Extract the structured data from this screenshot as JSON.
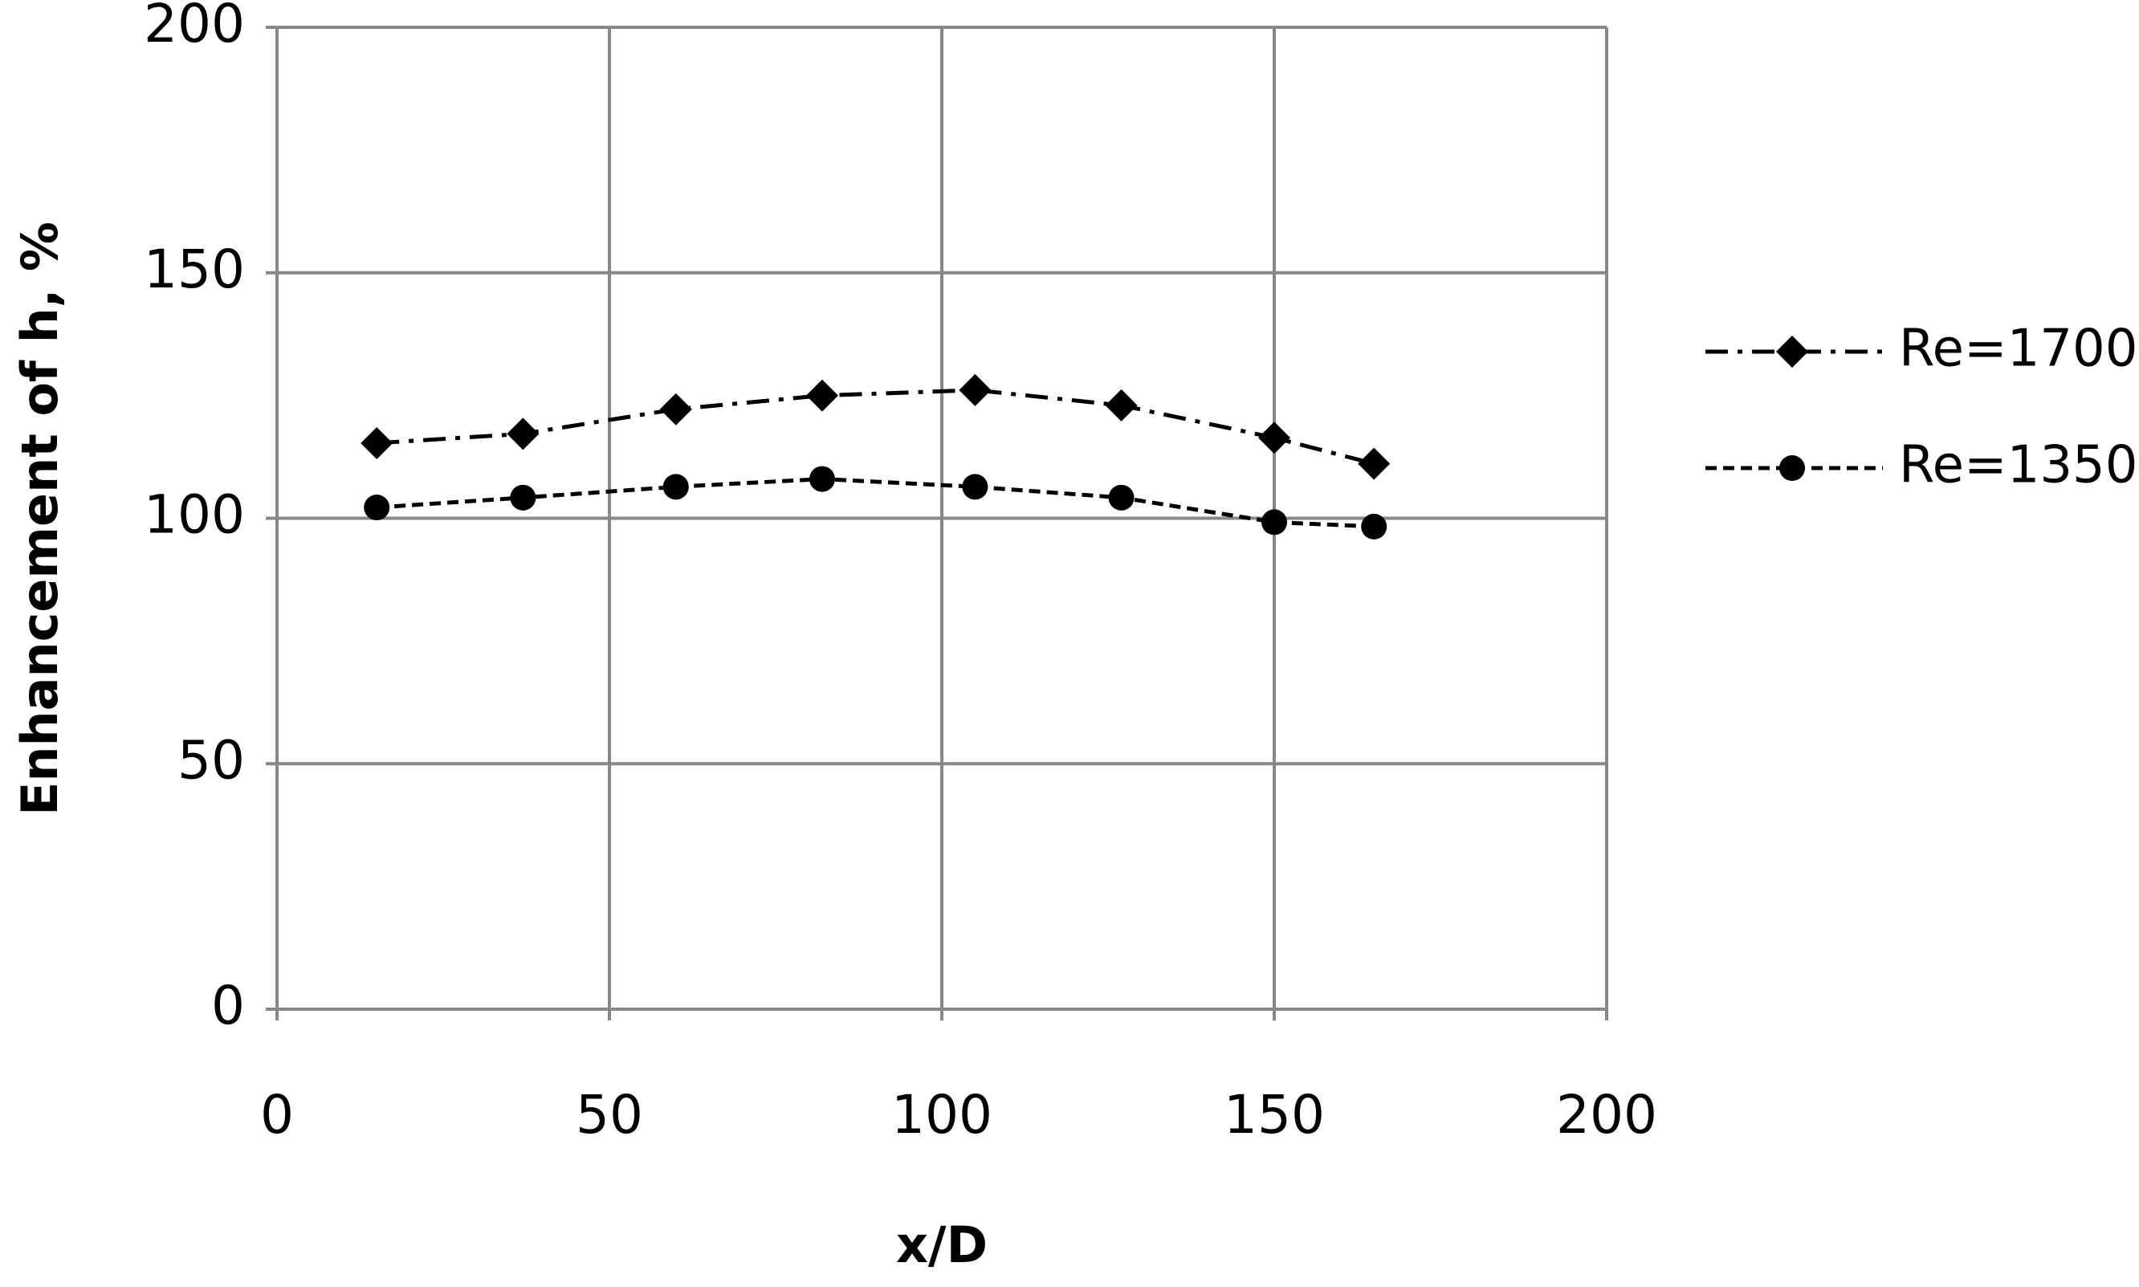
{
  "chart_data": {
    "type": "line",
    "x_label": "x/D",
    "y_label": "Enhancement of h, %",
    "xlim": [
      0,
      200
    ],
    "xticks": [
      0,
      50,
      100,
      150,
      200
    ],
    "ylim": [
      0,
      200
    ],
    "yticks": [
      0,
      50,
      100,
      150,
      200
    ],
    "grid": true,
    "legend": "right",
    "series": [
      {
        "name": "Re=1700",
        "color": "#000000",
        "marker": "diamond",
        "dash": "dash-dot",
        "x": [
          15,
          37,
          60,
          82,
          105,
          127,
          150,
          165
        ],
        "values": [
          115.3,
          117.2,
          122.2,
          125,
          126.1,
          123,
          116.4,
          111.1
        ]
      },
      {
        "name": "Re=1350",
        "color": "#000000",
        "marker": "circle",
        "dash": "dashed",
        "x": [
          15,
          37,
          60,
          82,
          105,
          127,
          150,
          165
        ],
        "values": [
          102.2,
          104.2,
          106.4,
          108,
          106.4,
          104.2,
          99.2,
          98.3
        ]
      }
    ]
  }
}
